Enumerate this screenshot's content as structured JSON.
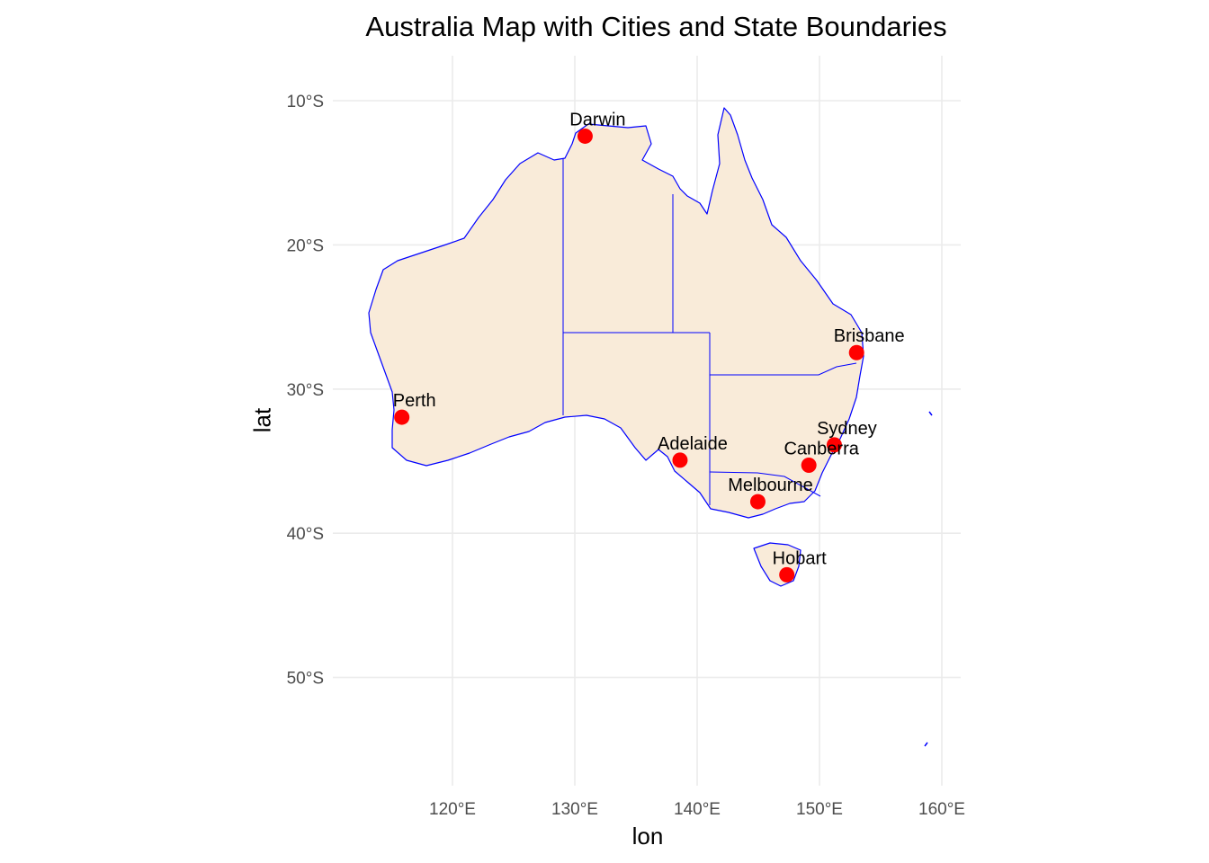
{
  "map": {
    "title": "Australia Map with Cities and State Boundaries",
    "xlabel": "lon",
    "ylabel": "lat",
    "colors": {
      "land": "#f9ebd9",
      "boundary": "#0000ff",
      "city_point": "#ff0000",
      "grid": "#ebebeb"
    },
    "x_ticks": [
      {
        "value": 120,
        "label": "120°E"
      },
      {
        "value": 130,
        "label": "130°E"
      },
      {
        "value": 140,
        "label": "140°E"
      },
      {
        "value": 150,
        "label": "150°E"
      },
      {
        "value": 160,
        "label": "160°E"
      }
    ],
    "y_ticks": [
      {
        "value": -10,
        "label": "10°S"
      },
      {
        "value": -20,
        "label": "20°S"
      },
      {
        "value": -30,
        "label": "30°S"
      },
      {
        "value": -40,
        "label": "40°S"
      },
      {
        "value": -50,
        "label": "50°S"
      }
    ],
    "cities": [
      {
        "name": "Darwin",
        "lon": 130.84,
        "lat": -12.46
      },
      {
        "name": "Brisbane",
        "lon": 153.03,
        "lat": -27.47
      },
      {
        "name": "Perth",
        "lon": 115.86,
        "lat": -31.95
      },
      {
        "name": "Sydney",
        "lon": 151.21,
        "lat": -33.87
      },
      {
        "name": "Adelaide",
        "lon": 138.6,
        "lat": -34.93
      },
      {
        "name": "Canberra",
        "lon": 149.13,
        "lat": -35.28
      },
      {
        "name": "Melbourne",
        "lon": 144.96,
        "lat": -37.81
      },
      {
        "name": "Hobart",
        "lon": 147.33,
        "lat": -42.88
      }
    ]
  }
}
